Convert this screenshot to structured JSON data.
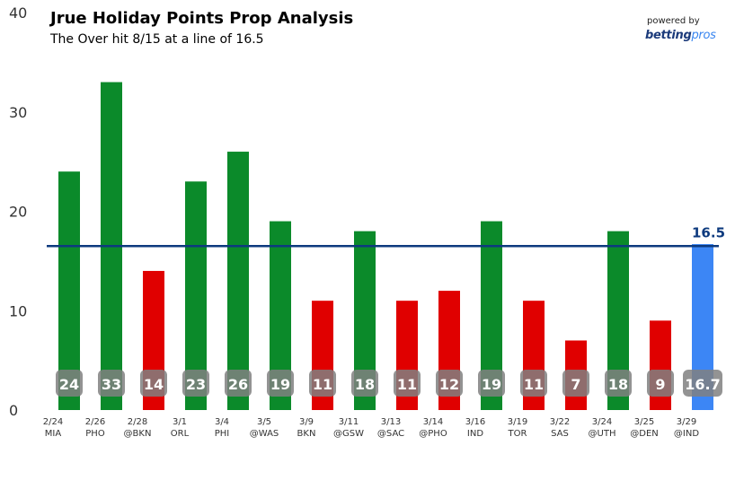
{
  "title": "Jrue Holiday Points Prop Analysis",
  "subtitle": "The Over hit 8/15 at a line of 16.5",
  "brand": {
    "small": "powered by",
    "logo_main": "betting",
    "logo_accent": "pros"
  },
  "colors": {
    "over": "#0b8a2a",
    "under": "#e00000",
    "projection": "#3c86f5",
    "line": "#0d3a7e",
    "badge": "#808080"
  },
  "chart_data": {
    "type": "bar",
    "title": "Jrue Holiday Points Prop Analysis",
    "subtitle": "The Over hit 8/15 at a line of 16.5",
    "ylim": [
      0,
      40
    ],
    "yticks": [
      0,
      10,
      20,
      30,
      40
    ],
    "line": {
      "value": 16.5,
      "label": "16.5"
    },
    "categories": [
      {
        "date": "2/24",
        "opp": "MIA"
      },
      {
        "date": "2/26",
        "opp": "PHO"
      },
      {
        "date": "2/28",
        "opp": "@BKN"
      },
      {
        "date": "3/1",
        "opp": "ORL"
      },
      {
        "date": "3/4",
        "opp": "PHI"
      },
      {
        "date": "3/5",
        "opp": "@WAS"
      },
      {
        "date": "3/9",
        "opp": "BKN"
      },
      {
        "date": "3/11",
        "opp": "@GSW"
      },
      {
        "date": "3/13",
        "opp": "@SAC"
      },
      {
        "date": "3/14",
        "opp": "@PHO"
      },
      {
        "date": "3/16",
        "opp": "IND"
      },
      {
        "date": "3/19",
        "opp": "TOR"
      },
      {
        "date": "3/22",
        "opp": "SAS"
      },
      {
        "date": "3/24",
        "opp": "@UTH"
      },
      {
        "date": "3/25",
        "opp": "@DEN"
      },
      {
        "date": "3/29",
        "opp": "@IND"
      }
    ],
    "values": [
      24,
      33,
      14,
      23,
      26,
      19,
      11,
      18,
      11,
      12,
      19,
      11,
      7,
      18,
      9,
      16.7
    ],
    "labels": [
      "24",
      "33",
      "14",
      "23",
      "26",
      "19",
      "11",
      "18",
      "11",
      "12",
      "19",
      "11",
      "7",
      "18",
      "9",
      "16.7"
    ],
    "status": [
      "over",
      "over",
      "under",
      "over",
      "over",
      "over",
      "under",
      "over",
      "under",
      "under",
      "over",
      "under",
      "under",
      "over",
      "under",
      "projection"
    ]
  }
}
